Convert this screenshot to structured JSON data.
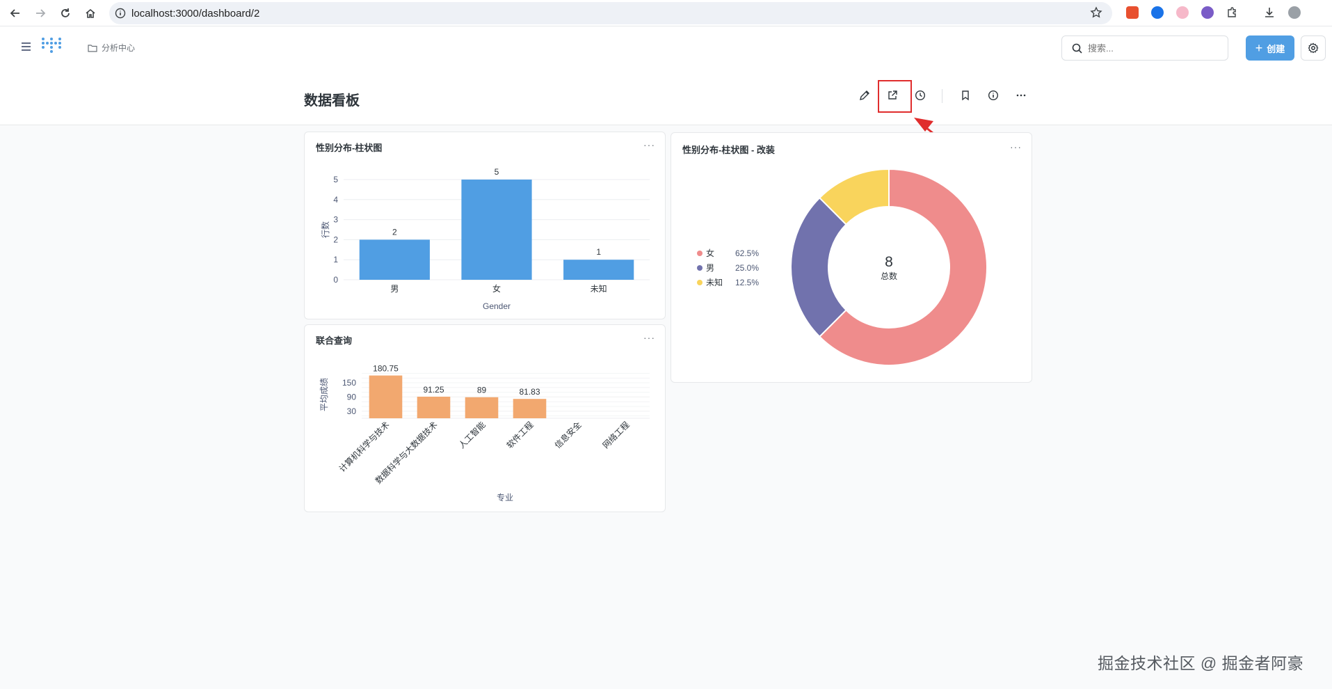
{
  "browser": {
    "url": "localhost:3000/dashboard/2"
  },
  "header": {
    "breadcrumb": "分析中心",
    "search_placeholder": "搜索...",
    "create_label": "创建"
  },
  "dashboard": {
    "title": "数据看板"
  },
  "cards": {
    "gender_bar": {
      "title": "性别分布-柱状图",
      "menu": "···"
    },
    "gender_donut": {
      "title": "性别分布-柱状图 - 改装",
      "menu": "···"
    },
    "major_bar": {
      "title": "联合查询",
      "menu": "···"
    }
  },
  "chart_data": [
    {
      "type": "bar",
      "title": "性别分布-柱状图",
      "xlabel": "Gender",
      "ylabel": "行数",
      "categories": [
        "男",
        "女",
        "未知"
      ],
      "values": [
        2,
        5,
        1
      ],
      "data_labels": [
        "2",
        "5",
        "1"
      ],
      "yticks": [
        "0",
        "1",
        "2",
        "3",
        "4",
        "5"
      ],
      "ylim": [
        0,
        5
      ],
      "color": "#509ee3",
      "grid": true
    },
    {
      "type": "pie",
      "title": "性别分布-柱状图 - 改装",
      "labels": [
        "女",
        "男",
        "未知"
      ],
      "values": [
        5,
        2,
        1
      ],
      "percents": [
        "62.5%",
        "25.0%",
        "12.5%"
      ],
      "colors": [
        "#ef8c8c",
        "#7172ad",
        "#f9d45c"
      ],
      "total": "8",
      "total_label": "总数",
      "legend": "left"
    },
    {
      "type": "bar",
      "title": "联合查询",
      "xlabel": "专业",
      "ylabel": "平均成绩",
      "categories": [
        "计算机科学与技术",
        "数据科学与大数据技术",
        "人工智能",
        "软件工程",
        "信息安全",
        "网络工程"
      ],
      "values": [
        180.75,
        91.25,
        89,
        81.83,
        0,
        0
      ],
      "data_labels": [
        "180.75",
        "91.25",
        "89",
        "81.83",
        "",
        ""
      ],
      "yticks": [
        "30",
        "90",
        "150"
      ],
      "ylim": [
        0,
        200
      ],
      "color": "#f2a86f",
      "grid": true
    }
  ],
  "watermark": "掘金技术社区 @ 掘金者阿豪",
  "colors": {
    "brand": "#509ee3",
    "highlight": "#e02d2d"
  }
}
